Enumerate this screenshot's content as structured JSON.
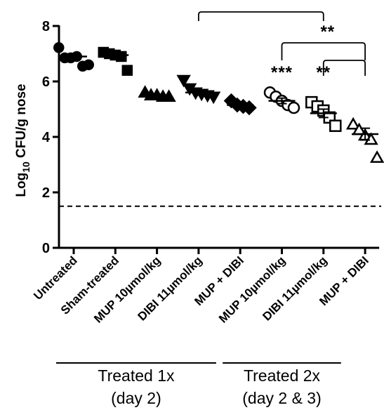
{
  "chart_data": {
    "type": "scatter",
    "ylabel": "Log10 CFU/g nose",
    "ylabel_main": "Log",
    "ylabel_sub": "10",
    "ylabel_rest": " CFU/g nose",
    "ylim": [
      0,
      8
    ],
    "yticks": [
      0,
      2,
      4,
      6,
      8
    ],
    "ytick_labels": [
      "0",
      "2",
      "4",
      "6",
      "8"
    ],
    "reference_line": 1.5,
    "categories": [
      "Untreated",
      "Sham-treated",
      "MUP 10µmol/kg",
      "DIBI 11µmol/kg",
      "MUP + DIBI",
      "MUP 10µmol/kg",
      "DIBI 11µmol/kg",
      "MUP + DIBI"
    ],
    "series": [
      {
        "marker": "circle-filled",
        "values": [
          7.22,
          6.85,
          6.85,
          6.9,
          6.55,
          6.6
        ],
        "mean": 6.9
      },
      {
        "marker": "square-filled",
        "values": [
          7.05,
          7.0,
          6.95,
          6.9,
          6.4
        ],
        "mean": 6.95
      },
      {
        "marker": "triangle-up-filled",
        "values": [
          5.6,
          5.5,
          5.5,
          5.45,
          5.45
        ],
        "mean": 5.5
      },
      {
        "marker": "triangle-down-filled",
        "values": [
          6.05,
          5.75,
          5.6,
          5.55,
          5.5,
          5.45
        ],
        "mean": 5.6
      },
      {
        "marker": "diamond-filled",
        "values": [
          5.3,
          5.15,
          5.1,
          5.05
        ],
        "mean": 5.15
      },
      {
        "marker": "circle-open",
        "values": [
          5.6,
          5.45,
          5.3,
          5.15,
          5.05
        ],
        "mean": 5.3
      },
      {
        "marker": "square-open",
        "values": [
          5.25,
          5.1,
          4.95,
          4.7,
          4.4
        ],
        "mean": 4.85
      },
      {
        "marker": "triangle-up-open",
        "values": [
          4.45,
          4.25,
          4.05,
          3.9,
          3.25
        ],
        "mean": 4.1
      }
    ],
    "significance": [
      {
        "group": 5,
        "label": "***"
      },
      {
        "group": 6,
        "label": "**"
      }
    ],
    "brackets": [
      {
        "from": 3,
        "to": 6
      },
      {
        "from": 5,
        "to": 7,
        "label": "**"
      },
      {
        "from": 6,
        "to": 7
      }
    ],
    "group_labels": [
      {
        "line1": "Treated 1x",
        "line2": "(day 2)",
        "from": 0,
        "to": 3
      },
      {
        "line1": "Treated 2x",
        "line2": "(day 2 & 3)",
        "from": 4,
        "to": 6
      }
    ]
  }
}
